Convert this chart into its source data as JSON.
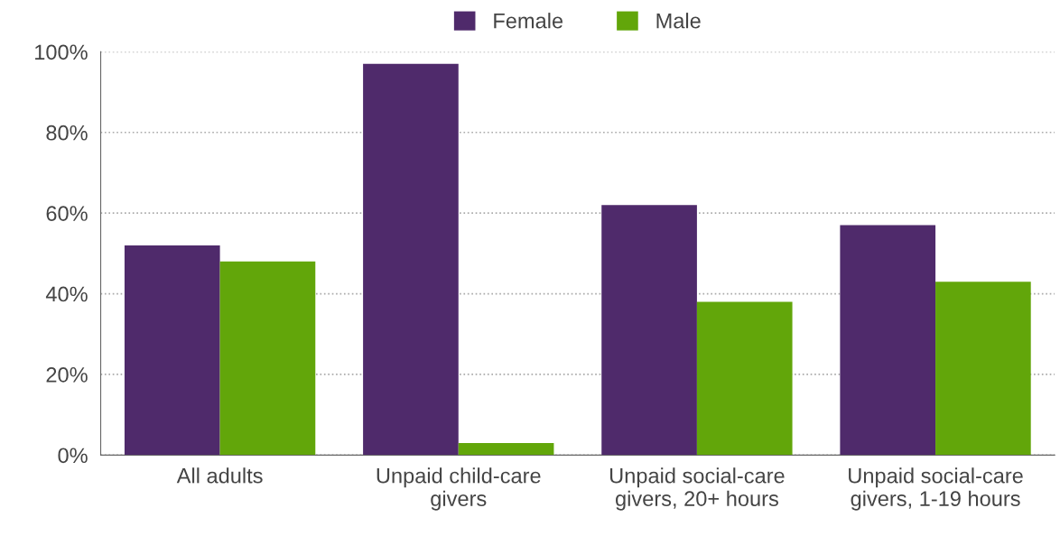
{
  "chart_data": {
    "type": "bar",
    "categories": [
      "All adults",
      "Unpaid child-care\ngivers",
      "Unpaid social-care\ngivers, 20+ hours",
      "Unpaid social-care\ngivers, 1-19 hours"
    ],
    "series": [
      {
        "name": "Female",
        "color": "#4f2a6b",
        "values": [
          52,
          97,
          62,
          57
        ]
      },
      {
        "name": "Male",
        "color": "#62a60a",
        "values": [
          48,
          3,
          38,
          43
        ]
      }
    ],
    "ylim": [
      0,
      100
    ],
    "yticks": [
      {
        "value": 0,
        "label": "0%"
      },
      {
        "value": 20,
        "label": "20%"
      },
      {
        "value": 40,
        "label": "40%"
      },
      {
        "value": 60,
        "label": "60%"
      },
      {
        "value": 80,
        "label": "80%"
      },
      {
        "value": 100,
        "label": "100%"
      }
    ],
    "grid": "y",
    "legend": "top"
  }
}
